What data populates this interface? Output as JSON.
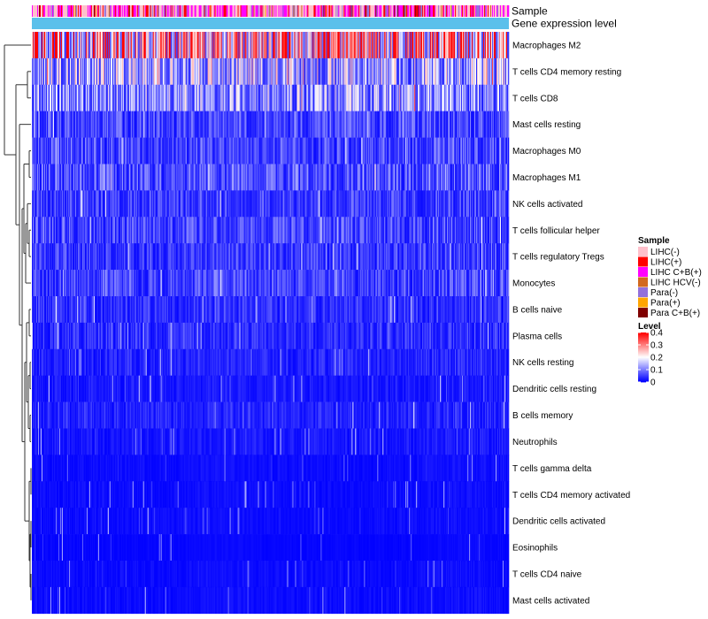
{
  "chart_data": {
    "type": "heatmap",
    "title": "",
    "annotation_tracks": [
      "Sample",
      "Gene expression level"
    ],
    "rows": [
      {
        "label": "Macrophages M2",
        "mean": 0.3
      },
      {
        "label": "T cells CD4 memory resting",
        "mean": 0.14
      },
      {
        "label": "T cells CD8",
        "mean": 0.12
      },
      {
        "label": "Mast cells resting",
        "mean": 0.06
      },
      {
        "label": "Macrophages M0",
        "mean": 0.06
      },
      {
        "label": "Macrophages M1",
        "mean": 0.07
      },
      {
        "label": "NK cells activated",
        "mean": 0.05
      },
      {
        "label": "T cells follicular helper",
        "mean": 0.06
      },
      {
        "label": "T cells regulatory  Tregs",
        "mean": 0.05
      },
      {
        "label": "Monocytes",
        "mean": 0.06
      },
      {
        "label": "B cells naive",
        "mean": 0.04
      },
      {
        "label": "Plasma cells",
        "mean": 0.04
      },
      {
        "label": "NK cells resting",
        "mean": 0.03
      },
      {
        "label": "Dendritic cells resting",
        "mean": 0.02
      },
      {
        "label": "B cells memory",
        "mean": 0.03
      },
      {
        "label": "Neutrophils",
        "mean": 0.02
      },
      {
        "label": "T cells gamma delta",
        "mean": 0.01
      },
      {
        "label": "T cells CD4 memory activated",
        "mean": 0.01
      },
      {
        "label": "Dendritic cells activated",
        "mean": 0.01
      },
      {
        "label": "Eosinophils",
        "mean": 0.005
      },
      {
        "label": "T cells CD4 naive",
        "mean": 0.01
      },
      {
        "label": "Mast cells activated",
        "mean": 0.01
      }
    ],
    "sample_legend": {
      "title": "Sample",
      "entries": [
        {
          "label": "LIHC(-)",
          "color": "#ffc0cb"
        },
        {
          "label": "LIHC(+)",
          "color": "#ff0000"
        },
        {
          "label": "LIHC C+B(+)",
          "color": "#ff00ff"
        },
        {
          "label": "LIHC HCV(-)",
          "color": "#d2691e"
        },
        {
          "label": "Para(-)",
          "color": "#9370db"
        },
        {
          "label": "Para(+)",
          "color": "#ffa500"
        },
        {
          "label": "Para C+B(+)",
          "color": "#800000"
        }
      ]
    },
    "level_legend": {
      "title": "Level",
      "range": [
        0,
        0.4
      ],
      "ticks": [
        "0.4",
        "0.3",
        "0.2",
        "0.1",
        "0"
      ],
      "colors": {
        "low": "#0000ff",
        "mid": "#ffffff",
        "high": "#ff0000"
      }
    },
    "expression_track_color": "#5bc0eb",
    "grid": false
  }
}
